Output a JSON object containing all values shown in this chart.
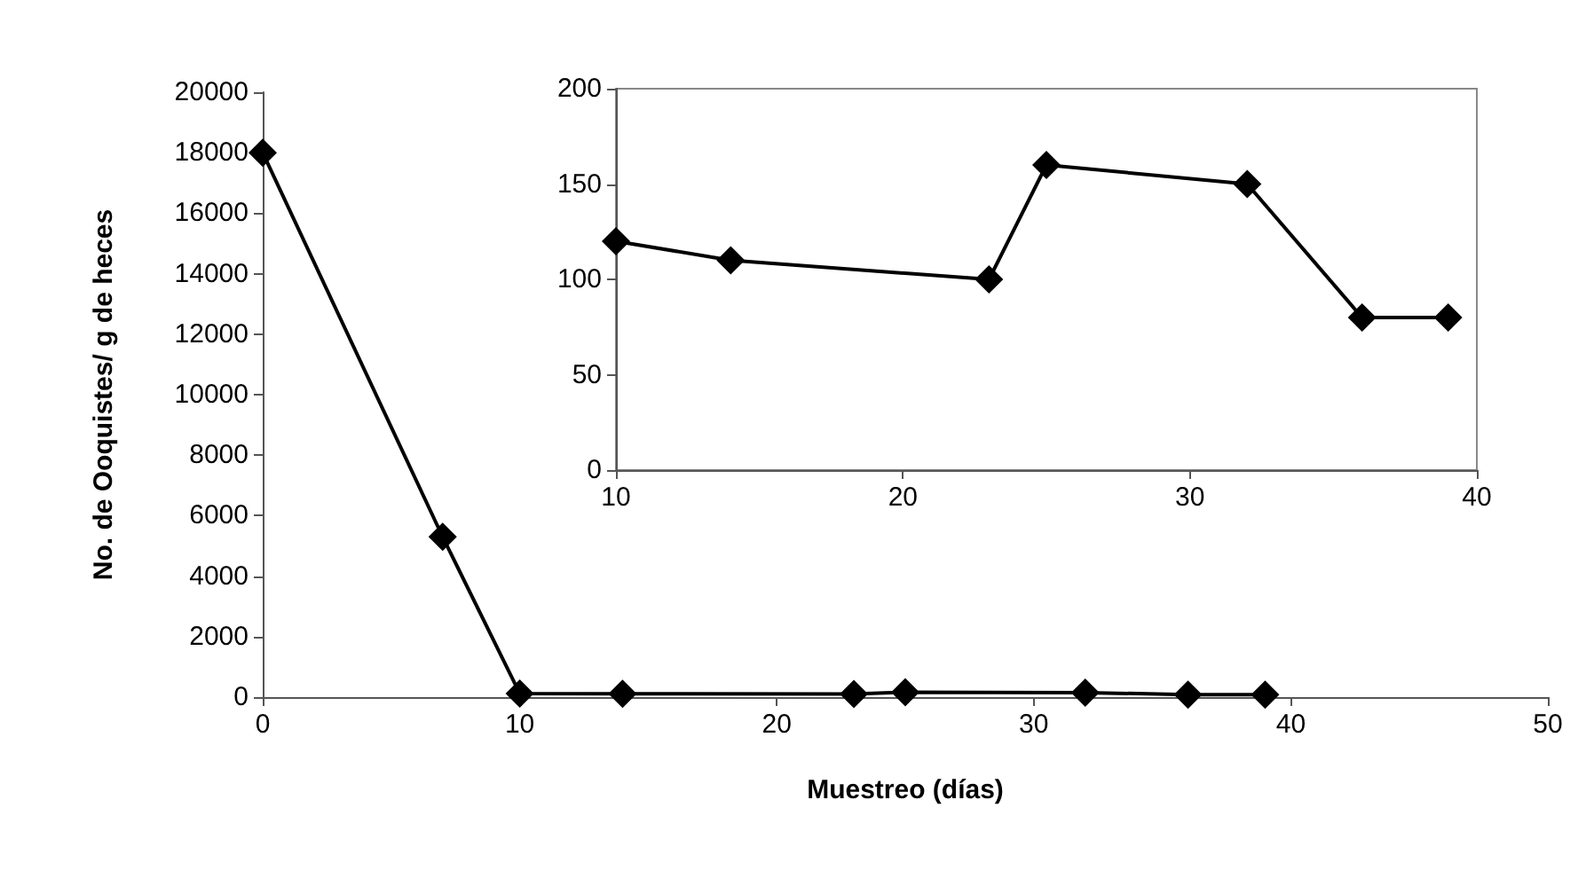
{
  "chart_data": [
    {
      "type": "line",
      "xlabel": "Muestreo (días)",
      "ylabel": "No. de Ooquistes/ g de heces",
      "x": [
        0,
        7,
        10,
        14,
        23,
        25,
        32,
        36,
        39
      ],
      "series": [
        {
          "color": "#000000",
          "values": [
            18000,
            5300,
            120,
            110,
            100,
            160,
            150,
            80,
            80
          ]
        }
      ],
      "xlim": [
        0,
        50
      ],
      "xticks": [
        0,
        10,
        20,
        30,
        40,
        50
      ],
      "ylim": [
        0,
        20000
      ],
      "yticks": [
        0,
        2000,
        4000,
        6000,
        8000,
        10000,
        12000,
        14000,
        16000,
        18000,
        20000
      ],
      "grid": false,
      "marker": "diamond",
      "line_style": "solid"
    },
    {
      "type": "line",
      "x": [
        10,
        14,
        23,
        25,
        32,
        36,
        39
      ],
      "series": [
        {
          "color": "#000000",
          "values": [
            120,
            110,
            100,
            160,
            150,
            80,
            80
          ]
        }
      ],
      "xlim": [
        10,
        40
      ],
      "xticks": [
        10,
        20,
        30,
        40
      ],
      "ylim": [
        0,
        200
      ],
      "yticks": [
        0,
        50,
        100,
        150,
        200
      ],
      "grid": false,
      "marker": "diamond",
      "line_style": "solid"
    }
  ]
}
